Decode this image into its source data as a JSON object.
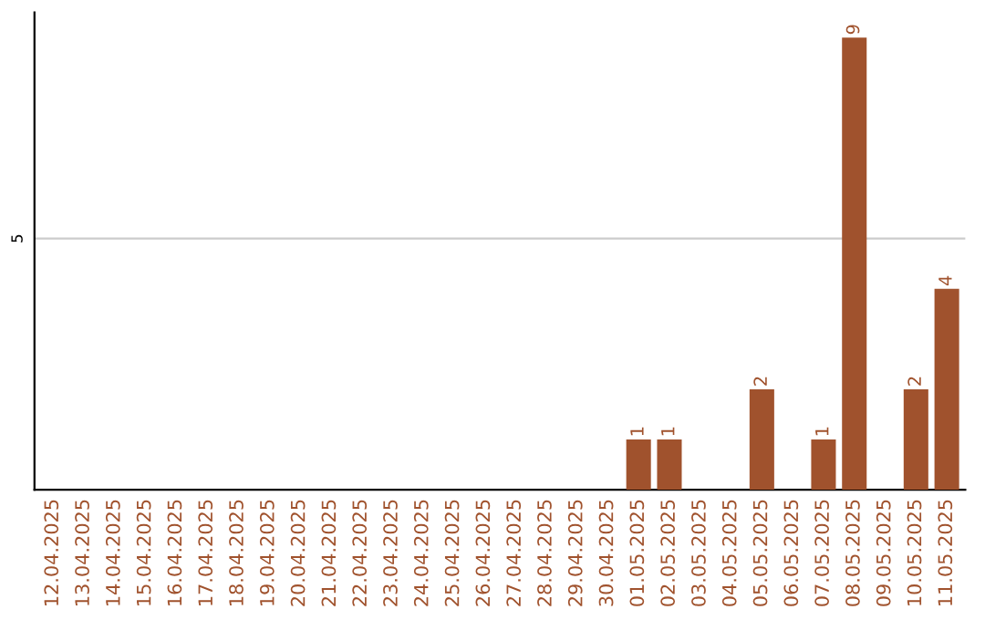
{
  "chart_data": {
    "type": "bar",
    "categories": [
      "12.04.2025",
      "13.04.2025",
      "14.04.2025",
      "15.04.2025",
      "16.04.2025",
      "17.04.2025",
      "18.04.2025",
      "19.04.2025",
      "20.04.2025",
      "21.04.2025",
      "22.04.2025",
      "23.04.2025",
      "24.04.2025",
      "25.04.2025",
      "26.04.2025",
      "27.04.2025",
      "28.04.2025",
      "29.04.2025",
      "30.04.2025",
      "01.05.2025",
      "02.05.2025",
      "03.05.2025",
      "04.05.2025",
      "05.05.2025",
      "06.05.2025",
      "07.05.2025",
      "08.05.2025",
      "09.05.2025",
      "10.05.2025",
      "11.05.2025"
    ],
    "values": [
      null,
      null,
      null,
      null,
      null,
      null,
      null,
      null,
      null,
      null,
      null,
      null,
      null,
      null,
      null,
      null,
      null,
      null,
      null,
      1,
      1,
      null,
      null,
      2,
      null,
      1,
      9,
      null,
      2,
      4
    ],
    "color": "#a0522d",
    "ylim": [
      0,
      9.5
    ],
    "yticks": [
      5
    ],
    "grid": "y",
    "data_labels": true
  }
}
